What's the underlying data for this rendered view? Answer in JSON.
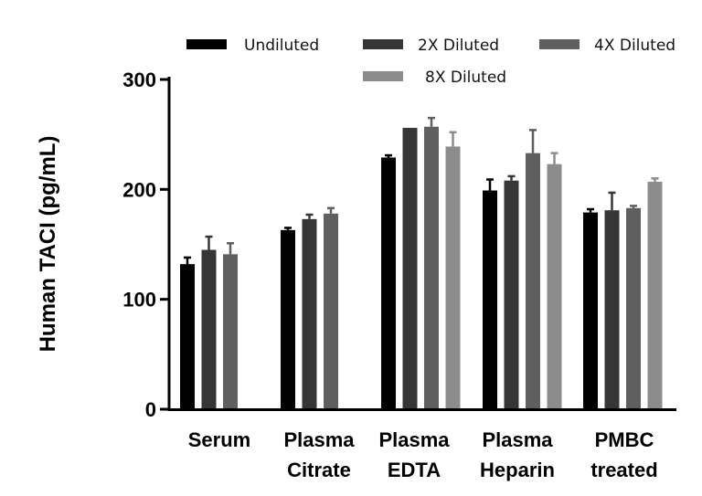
{
  "chart_data": {
    "type": "bar",
    "ylabel": "Human TACI (pg/mL)",
    "xlabel": "",
    "ylim": [
      0,
      300
    ],
    "yticks": [
      "0",
      "100",
      "200",
      "300"
    ],
    "categories": [
      [
        "Serum"
      ],
      [
        "Plasma",
        "Citrate"
      ],
      [
        "Plasma",
        "EDTA"
      ],
      [
        "Plasma",
        "Heparin"
      ],
      [
        "PMBC",
        "treated"
      ]
    ],
    "legend_position": "top",
    "series": [
      {
        "name": "Undiluted",
        "color": "#000000",
        "values": [
          132,
          163,
          229,
          199,
          179
        ],
        "errors": [
          6,
          2,
          2,
          10,
          3
        ]
      },
      {
        "name": "2X Diluted",
        "color": "#363636",
        "values": [
          145,
          173,
          256,
          208,
          181
        ],
        "errors": [
          12,
          4,
          0,
          4,
          16
        ]
      },
      {
        "name": "4X Diluted",
        "color": "#5f5f5f",
        "values": [
          141,
          178,
          257,
          233,
          183
        ],
        "errors": [
          10,
          5,
          8,
          21,
          2
        ]
      },
      {
        "name": "8X Diluted",
        "color": "#8c8c8c",
        "values": [
          null,
          null,
          239,
          223,
          207
        ],
        "errors": [
          null,
          null,
          13,
          10,
          3
        ]
      }
    ]
  }
}
